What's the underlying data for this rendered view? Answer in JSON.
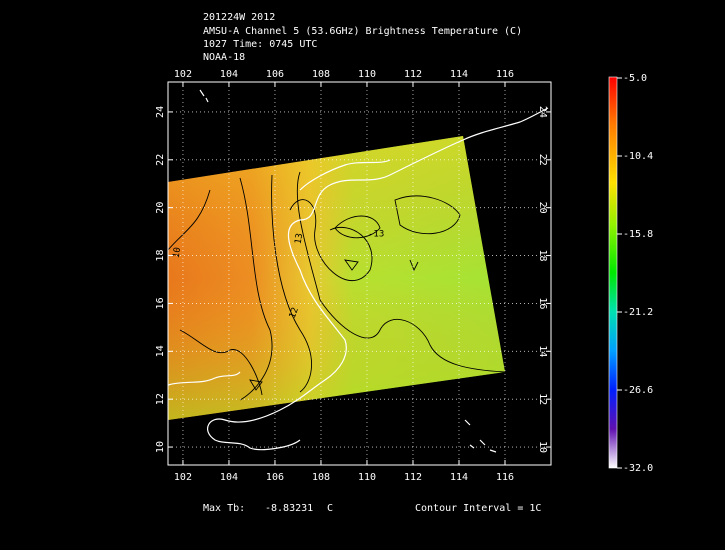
{
  "header": {
    "lines": [
      "201224W 2012",
      "AMSU-A Channel 5 (53.6GHz) Brightness Temperature (C)",
      "1027 Time: 0745 UTC",
      "NOAA-18"
    ]
  },
  "map": {
    "lon_range": [
      101.35,
      118
    ],
    "lat_range": [
      9.25,
      25.25
    ],
    "lon_ticks": [
      102,
      104,
      106,
      108,
      110,
      112,
      114,
      116
    ],
    "lat_ticks": [
      10,
      12,
      14,
      16,
      18,
      20,
      22,
      24
    ],
    "contour_labels": [
      "10",
      "13",
      "-13",
      "12"
    ]
  },
  "colorbar": {
    "range": [
      -32,
      -5
    ],
    "ticks": [
      {
        "value": -5,
        "label": "-5.0"
      },
      -10.4,
      -15.8,
      -21.2,
      -26.6,
      {
        "value": -32,
        "label": "-32.0"
      }
    ]
  },
  "footer": {
    "max_label": "Max Tb:",
    "max_value": -8.83231,
    "max_unit": "C",
    "contour_interval": "Contour Interval = 1C"
  }
}
